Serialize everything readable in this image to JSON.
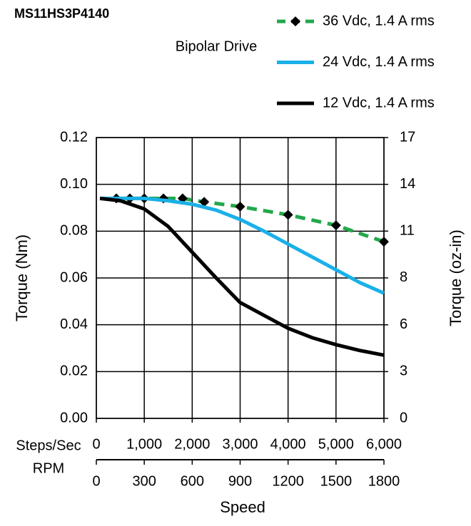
{
  "chart_data": {
    "type": "line",
    "title": "MS11HS3P4140",
    "subtitle": "Bipolar Drive",
    "x_label": "Speed",
    "x_row_label": "Steps/Sec",
    "x2_row_label": "RPM",
    "y_label": "Torque (Nm)",
    "y2_label": "Torque (oz-in)",
    "xlim": [
      0,
      6000
    ],
    "xticks": [
      0,
      {
        "value": 1000,
        "label": "1,000"
      },
      {
        "value": 2000,
        "label": "2,000"
      },
      {
        "value": 3000,
        "label": "3,000"
      },
      {
        "value": 4000,
        "label": "4,000"
      },
      {
        "value": 5000,
        "label": "5,000"
      },
      {
        "value": 6000,
        "label": "6,000"
      }
    ],
    "x2lim": [
      0,
      1800
    ],
    "x2ticks": [
      0,
      300,
      600,
      900,
      1200,
      1500,
      1800
    ],
    "ylim": [
      0,
      0.12
    ],
    "yticks": [
      {
        "value": 0,
        "label": "0.00"
      },
      {
        "value": 0.02,
        "label": "0.02"
      },
      {
        "value": 0.04,
        "label": "0.04"
      },
      {
        "value": 0.06,
        "label": "0.06"
      },
      {
        "value": 0.08,
        "label": "0.08"
      },
      {
        "value": 0.1,
        "label": "0.10"
      },
      {
        "value": 0.12,
        "label": "0.12"
      }
    ],
    "y2lim": [
      0,
      16.99
    ],
    "y2ticks": [
      0,
      {
        "value": 2.83,
        "label": "3"
      },
      {
        "value": 5.66,
        "label": "6"
      },
      {
        "value": 8.5,
        "label": "8"
      },
      {
        "value": 11.33,
        "label": "11"
      },
      {
        "value": 14.16,
        "label": "14"
      },
      {
        "value": 16.99,
        "label": "17"
      }
    ],
    "grid": true,
    "legend": "upper right",
    "series": [
      {
        "name": "36 Vdc, 1.4 A rms",
        "color": "#22a84a",
        "dashed": true,
        "marker": "diamond",
        "x": [
          417,
          700,
          1000,
          1400,
          1800,
          2250,
          3000,
          4000,
          5000,
          6000
        ],
        "values": [
          0.094,
          0.094,
          0.094,
          0.094,
          0.094,
          0.0925,
          0.0905,
          0.087,
          0.0825,
          0.0755
        ]
      },
      {
        "name": "24 Vdc, 1.4 A rms",
        "color": "#1ab0e8",
        "dashed": false,
        "marker": "none",
        "x": [
          75,
          1000,
          1500,
          2000,
          2500,
          3000,
          3500,
          4000,
          4500,
          5000,
          5500,
          6000
        ],
        "values": [
          0.094,
          0.094,
          0.093,
          0.0915,
          0.089,
          0.085,
          0.08,
          0.0745,
          0.069,
          0.0635,
          0.058,
          0.0535
        ]
      },
      {
        "name": "12 Vdc, 1.4 A rms",
        "color": "#000000",
        "dashed": false,
        "marker": "none",
        "x": [
          75,
          500,
          1000,
          1500,
          2000,
          2500,
          3000,
          3500,
          4000,
          4500,
          5000,
          5500,
          6000
        ],
        "values": [
          0.094,
          0.093,
          0.0895,
          0.082,
          0.071,
          0.06,
          0.0495,
          0.044,
          0.0385,
          0.0345,
          0.0315,
          0.029,
          0.027
        ]
      }
    ]
  }
}
